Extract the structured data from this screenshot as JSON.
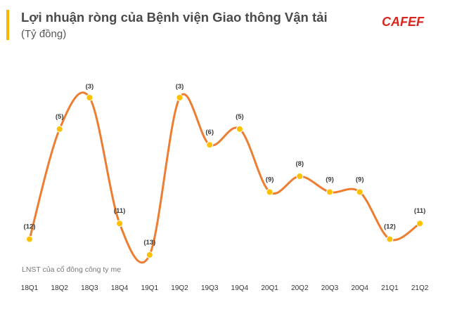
{
  "header": {
    "title": "Lợi nhuận ròng của Bệnh viện Giao thông Vận tải",
    "subtitle": "(Tỷ đồng)",
    "brand": "CAFEF"
  },
  "colors": {
    "line": "#ed7d31",
    "marker": "#ffc000",
    "accent": "#f5b800",
    "brand": "#d7261d"
  },
  "chart_data": {
    "type": "line",
    "categories": [
      "18Q1",
      "18Q2",
      "18Q3",
      "18Q4",
      "19Q1",
      "19Q2",
      "19Q3",
      "19Q4",
      "20Q1",
      "20Q2",
      "20Q3",
      "20Q4",
      "21Q1",
      "21Q2"
    ],
    "series": [
      {
        "values": [
          -12,
          -5,
          -3,
          -11,
          -13,
          -3,
          -6,
          -5,
          -9,
          -8,
          -9,
          -9,
          -12,
          -11
        ]
      }
    ],
    "data_labels": [
      "(12)",
      "(5)",
      "(3)",
      "(11)",
      "(13)",
      "(3)",
      "(6)",
      "(5)",
      "(9)",
      "(8)",
      "(9)",
      "(9)",
      "(12)",
      "(11)"
    ],
    "smooth": true,
    "y_axis_visible": false,
    "grid": false,
    "legend": "none",
    "annotation": "LNST của cổ đông công ty mẹ"
  }
}
